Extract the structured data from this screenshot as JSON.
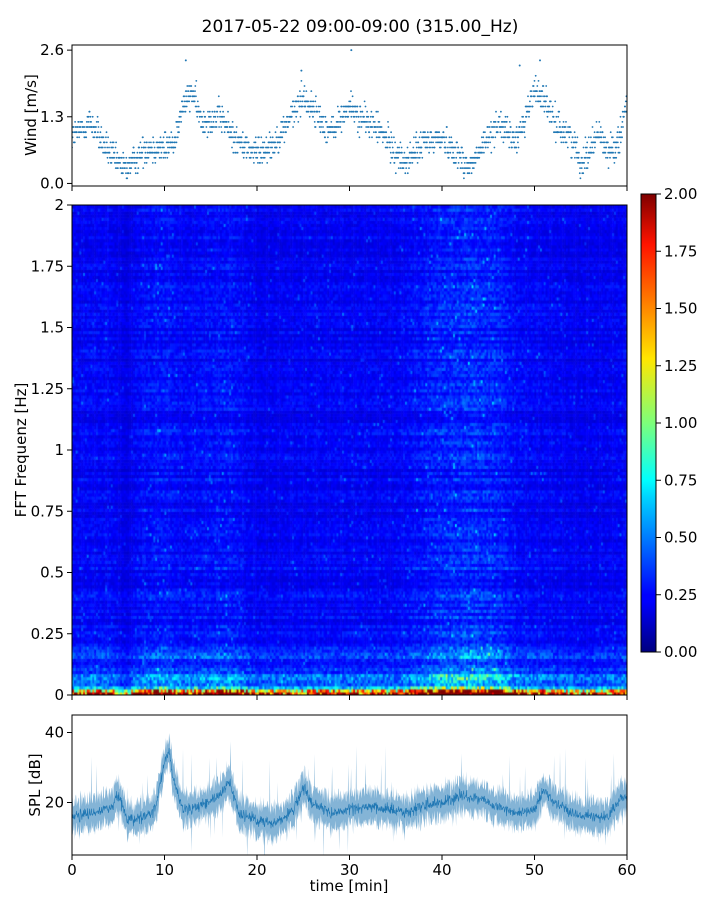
{
  "colors": {
    "series": "#1f77b4",
    "colormap": "jet"
  },
  "chart_data": [
    {
      "id": "wind",
      "type": "scatter",
      "title": "2017-05-22 09:00-09:00 (315.00_Hz)",
      "ylabel": "Wind [m/s]",
      "xlim": [
        0,
        60
      ],
      "ylim": [
        -0.05,
        2.7
      ],
      "yticks": [
        0.0,
        1.3,
        2.6
      ],
      "yticklabels": [
        "0.0",
        "1.3",
        "2.6"
      ],
      "sample_rate_per_min": 30,
      "step_ms": 0.1,
      "trend": {
        "x": [
          0,
          2,
          4,
          5,
          6,
          8,
          10,
          11,
          12,
          13,
          14,
          16,
          18,
          20,
          22,
          24,
          25,
          27,
          28,
          30,
          31,
          33,
          35,
          36,
          38,
          40,
          42,
          43,
          44,
          46,
          48,
          49,
          50,
          51,
          52,
          54,
          55,
          56,
          57,
          58,
          59,
          60
        ],
        "y": [
          0.9,
          1.2,
          0.6,
          0.4,
          0.3,
          0.7,
          0.7,
          0.8,
          1.5,
          1.8,
          1.2,
          1.3,
          0.8,
          0.6,
          0.8,
          1.4,
          1.7,
          1.2,
          1.0,
          1.5,
          1.3,
          1.1,
          0.6,
          0.4,
          0.8,
          0.9,
          0.5,
          0.3,
          0.6,
          1.2,
          0.8,
          1.3,
          1.8,
          1.7,
          1.2,
          0.9,
          0.4,
          0.7,
          1.0,
          0.6,
          0.8,
          1.6
        ]
      },
      "spikes": [
        {
          "x": 12.3,
          "y": 2.4
        },
        {
          "x": 30.2,
          "y": 2.6
        },
        {
          "x": 48.4,
          "y": 2.3
        },
        {
          "x": 50.6,
          "y": 2.4
        },
        {
          "x": 24.8,
          "y": 2.2
        }
      ]
    },
    {
      "id": "spectrogram",
      "type": "heatmap",
      "ylabel": "FFT Frequenz [Hz]",
      "xlim": [
        0,
        60
      ],
      "ylim": [
        0,
        2
      ],
      "yticks": [
        0,
        0.25,
        0.5,
        0.75,
        1,
        1.25,
        1.5,
        1.75,
        2
      ],
      "yticklabels": [
        "0",
        "0.25",
        "0.5",
        "0.75",
        "1",
        "1.25",
        "1.5",
        "1.75",
        "2"
      ],
      "colorbar": {
        "range": [
          0.0,
          2.0
        ],
        "ticks": [
          0.0,
          0.25,
          0.5,
          0.75,
          1.0,
          1.25,
          1.5,
          1.75,
          2.0
        ],
        "ticklabels": [
          "0.00",
          "0.25",
          "0.50",
          "0.75",
          "1.00",
          "1.25",
          "1.50",
          "1.75",
          "2.00"
        ]
      },
      "time_bins": 300,
      "freq_bins": 160,
      "activity": {
        "x": [
          0,
          4,
          6,
          7,
          10,
          12,
          15,
          17,
          20,
          25,
          30,
          35,
          40,
          43,
          46,
          48,
          52,
          55,
          60
        ],
        "v": [
          0.8,
          0.9,
          0.5,
          0.9,
          1.1,
          0.9,
          1.0,
          1.1,
          0.7,
          0.8,
          0.8,
          0.8,
          1.3,
          1.45,
          1.3,
          0.9,
          0.8,
          0.7,
          0.8
        ]
      }
    },
    {
      "id": "spl",
      "type": "line",
      "xlabel": "time [min]",
      "ylabel": "SPL [dB]",
      "xlim": [
        0,
        60
      ],
      "ylim": [
        5,
        45
      ],
      "xticks": [
        0,
        10,
        20,
        30,
        40,
        50,
        60
      ],
      "xticklabels": [
        "0",
        "10",
        "20",
        "30",
        "40",
        "50",
        "60"
      ],
      "yticks": [
        20,
        40
      ],
      "yticklabels": [
        "20",
        "40"
      ],
      "baseline": {
        "x": [
          0,
          2,
          4,
          5,
          6,
          8,
          9,
          10,
          10.5,
          11,
          12,
          14,
          16,
          17,
          18,
          20,
          22,
          24,
          25,
          26,
          28,
          30,
          32,
          34,
          36,
          38,
          40,
          42,
          44,
          46,
          48,
          50,
          51,
          52,
          54,
          56,
          58,
          59,
          60
        ],
        "y": [
          16,
          17,
          18,
          22,
          15,
          16,
          18,
          32,
          35,
          26,
          18,
          19,
          22,
          26,
          17,
          15,
          14,
          18,
          24,
          20,
          17,
          18,
          19,
          18,
          17,
          19,
          20,
          22,
          21,
          19,
          17,
          18,
          24,
          20,
          17,
          16,
          16,
          20,
          22
        ]
      }
    }
  ]
}
